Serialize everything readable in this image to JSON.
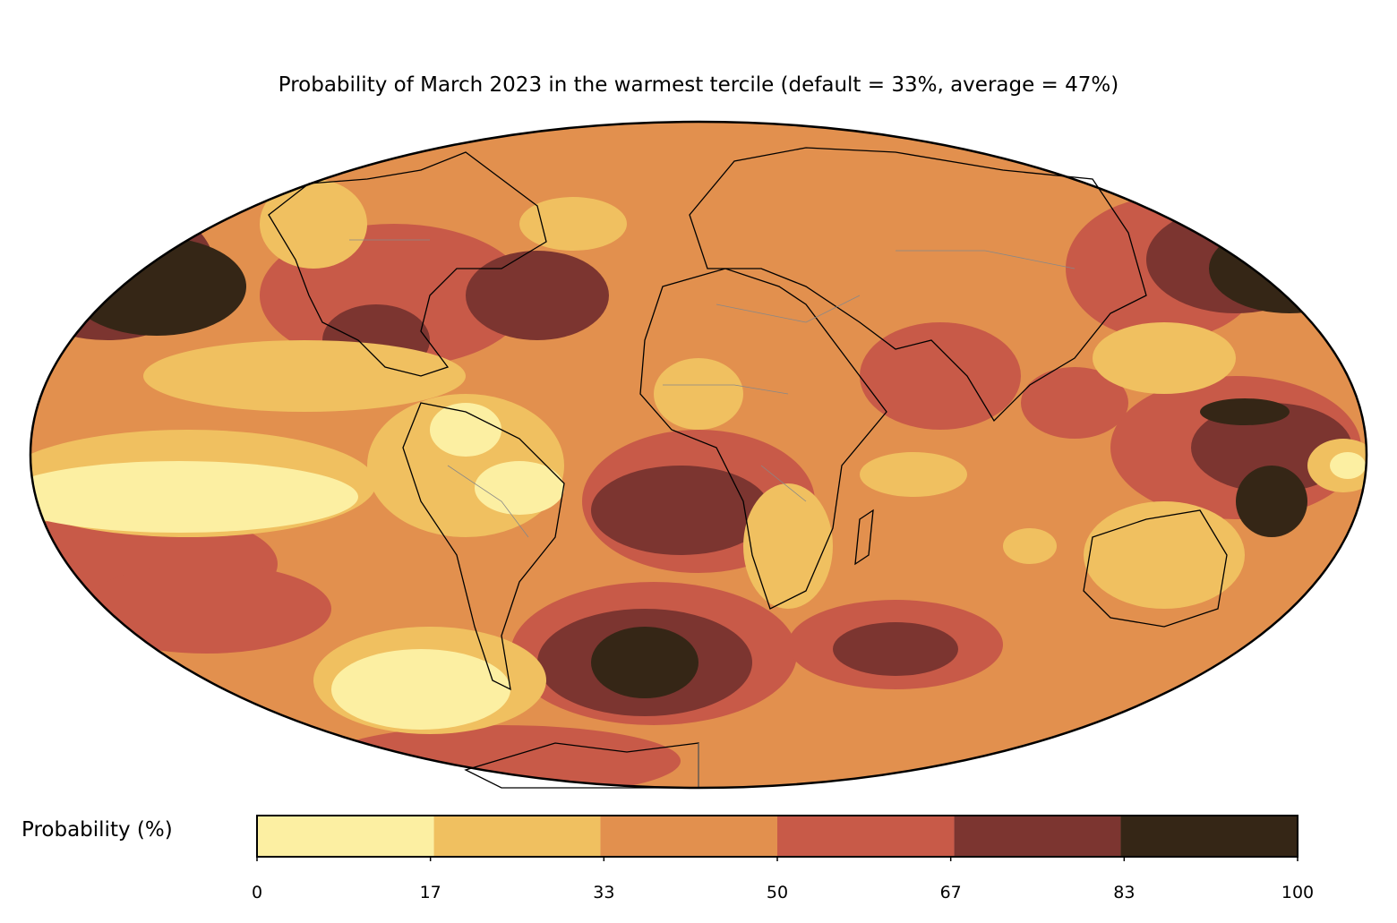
{
  "map": {
    "title": "Probability of March 2023 in the warmest tercile (default = 33%, average = 47%)",
    "projection": "Mollweide",
    "colorbar": {
      "label": "Probability (%)",
      "ticks": [
        "0",
        "17",
        "33",
        "50",
        "67",
        "83",
        "100"
      ],
      "bins": [
        {
          "range": [
            0,
            17
          ],
          "color": "#fcefa2"
        },
        {
          "range": [
            17,
            33
          ],
          "color": "#f0c060"
        },
        {
          "range": [
            33,
            50
          ],
          "color": "#e2904e"
        },
        {
          "range": [
            50,
            67
          ],
          "color": "#c85a48"
        },
        {
          "range": [
            67,
            83
          ],
          "color": "#7c3530"
        },
        {
          "range": [
            83,
            100
          ],
          "color": "#352616"
        }
      ]
    }
  }
}
